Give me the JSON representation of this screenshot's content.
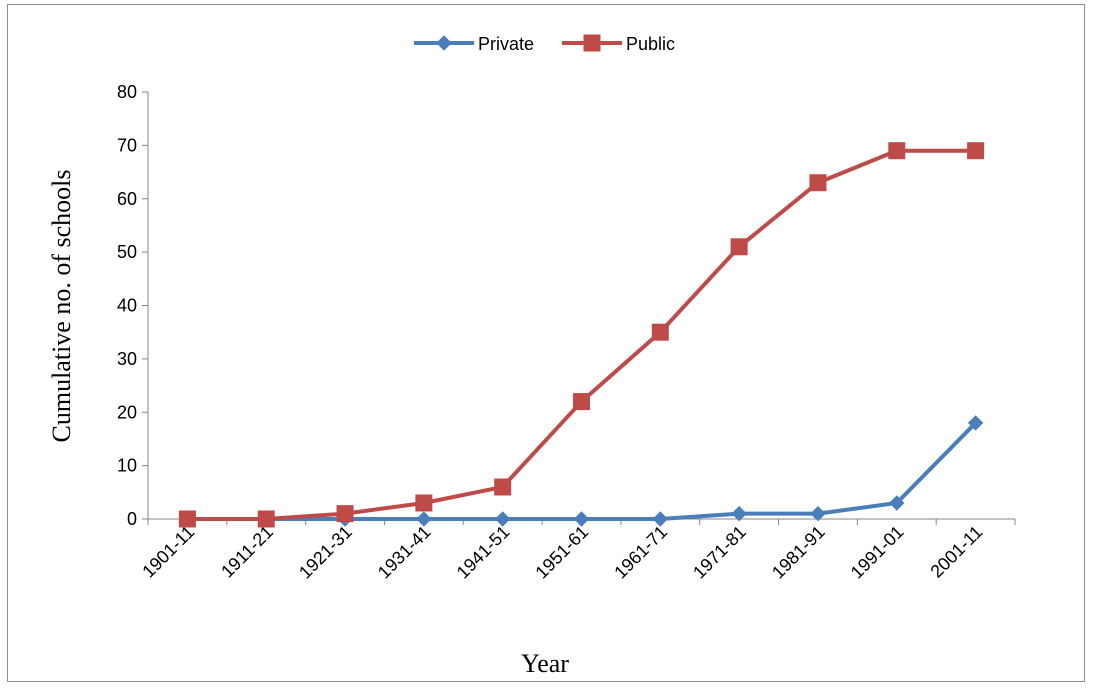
{
  "chart_data": {
    "type": "line",
    "title": "",
    "xlabel": "Year",
    "ylabel": "Cumulative no. of schools",
    "categories": [
      "1901-11",
      "1911-21",
      "1921-31",
      "1931-41",
      "1941-51",
      "1951-61",
      "1961-71",
      "1971-81",
      "1981-91",
      "1991-01",
      "2001-11"
    ],
    "ylim": [
      0,
      80
    ],
    "yticks": [
      0,
      10,
      20,
      30,
      40,
      50,
      60,
      70,
      80
    ],
    "grid": false,
    "legend_position": "top-center",
    "series": [
      {
        "name": "Private",
        "color": "#4a7ebb",
        "marker": "diamond",
        "values": [
          0,
          0,
          0,
          0,
          0,
          0,
          0,
          1,
          1,
          3,
          18
        ]
      },
      {
        "name": "Public",
        "color": "#be4b48",
        "marker": "square",
        "values": [
          0,
          0,
          1,
          3,
          6,
          22,
          35,
          51,
          63,
          69,
          69
        ]
      }
    ]
  }
}
